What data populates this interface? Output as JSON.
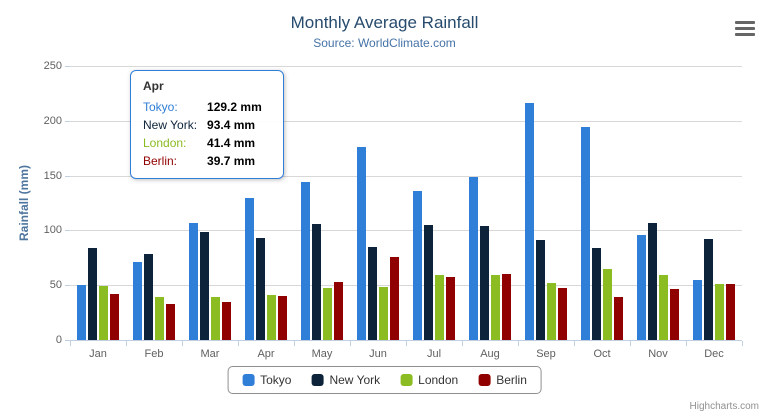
{
  "chart": {
    "title": "Monthly Average Rainfall",
    "subtitle": "Source: WorldClimate.com",
    "yaxis_title": "Rainfall (mm)",
    "credits": "Highcharts.com",
    "menu_icon": "hamburger-menu-icon"
  },
  "chart_data": {
    "type": "bar",
    "title": "Monthly Average Rainfall",
    "subtitle": "Source: WorldClimate.com",
    "xlabel": "",
    "ylabel": "Rainfall (mm)",
    "ylim": [
      0,
      250
    ],
    "yticks": [
      0,
      50,
      100,
      150,
      200,
      250
    ],
    "grid": true,
    "legend_position": "bottom",
    "categories": [
      "Jan",
      "Feb",
      "Mar",
      "Apr",
      "May",
      "Jun",
      "Jul",
      "Aug",
      "Sep",
      "Oct",
      "Nov",
      "Dec"
    ],
    "series": [
      {
        "name": "Tokyo",
        "color": "#2f7ed8",
        "values": [
          49.9,
          71.5,
          106.4,
          129.2,
          144.0,
          176.0,
          135.6,
          148.5,
          216.4,
          194.1,
          95.6,
          54.4
        ]
      },
      {
        "name": "New York",
        "color": "#0d233a",
        "values": [
          83.6,
          78.8,
          98.5,
          93.4,
          106.0,
          84.5,
          105.0,
          104.3,
          91.2,
          83.5,
          106.6,
          92.3
        ]
      },
      {
        "name": "London",
        "color": "#8bbc21",
        "values": [
          48.9,
          38.8,
          39.3,
          41.4,
          47.0,
          48.3,
          59.0,
          59.6,
          52.4,
          65.2,
          59.3,
          51.2
        ]
      },
      {
        "name": "Berlin",
        "color": "#910000",
        "values": [
          42.4,
          33.2,
          34.5,
          39.7,
          52.6,
          75.5,
          57.4,
          60.4,
          47.6,
          39.1,
          46.8,
          51.1
        ]
      }
    ]
  },
  "tooltip": {
    "header": "Apr",
    "rows": [
      {
        "name": "Tokyo:",
        "value": "129.2 mm",
        "color": "#2f7ed8"
      },
      {
        "name": "New York:",
        "value": "93.4 mm",
        "color": "#0d233a"
      },
      {
        "name": "London:",
        "value": "41.4 mm",
        "color": "#8bbc21"
      },
      {
        "name": "Berlin:",
        "value": "39.7 mm",
        "color": "#910000"
      }
    ]
  },
  "legend": {
    "items": [
      {
        "label": "Tokyo",
        "color": "#2f7ed8"
      },
      {
        "label": "New York",
        "color": "#0d233a"
      },
      {
        "label": "London",
        "color": "#8bbc21"
      },
      {
        "label": "Berlin",
        "color": "#910000"
      }
    ]
  },
  "colors": {
    "title": "#274b6d",
    "subtitle": "#4572a7",
    "axis_labels": "#606060",
    "yaxis_title": "#4d759e",
    "gridline": "#d8d8d8",
    "axis_line": "#c0d0e0",
    "tooltip_border": "#2f7ed8",
    "legend_border": "#909090",
    "credits": "#909090"
  }
}
